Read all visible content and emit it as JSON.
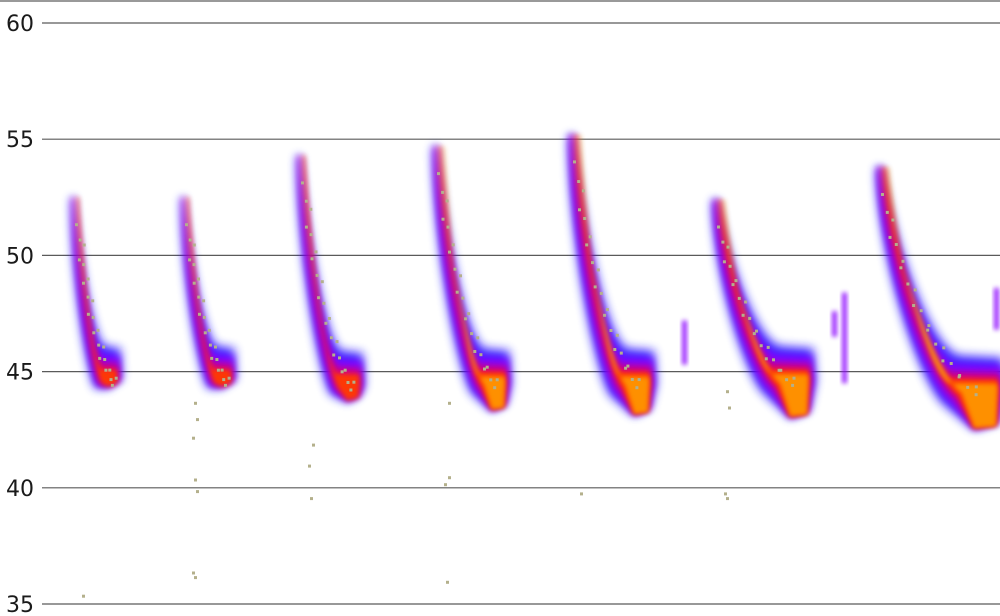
{
  "chart_data": {
    "type": "heatmap",
    "title": "",
    "xlabel": "",
    "ylabel": "",
    "ylim": [
      35,
      60
    ],
    "y_ticks": [
      {
        "value": 60,
        "label": "60"
      },
      {
        "value": 55,
        "label": "55"
      },
      {
        "value": 50,
        "label": "50"
      },
      {
        "value": 45,
        "label": "45"
      },
      {
        "value": 40,
        "label": "40"
      },
      {
        "value": 35,
        "label": "35"
      }
    ],
    "grid": true,
    "colormap": [
      "#1a00ff",
      "#8a00ff",
      "#e0006a",
      "#ff3a00",
      "#ff9a00",
      "#ffe040"
    ],
    "peak_marker_color": "#b4b08c",
    "sweeps": [
      {
        "start": 52.5,
        "end": 44.6,
        "tail_low": 44.4,
        "width": 1.0
      },
      {
        "start": 52.5,
        "end": 44.6,
        "tail_low": 44.4,
        "width": 1.0
      },
      {
        "start": 54.3,
        "end": 44.4,
        "tail_low": 43.8,
        "width": 1.2
      },
      {
        "start": 54.7,
        "end": 44.5,
        "tail_low": 43.4,
        "width": 1.4
      },
      {
        "start": 55.2,
        "end": 44.5,
        "tail_low": 43.2,
        "width": 1.7
      },
      {
        "start": 52.4,
        "end": 44.6,
        "tail_low": 43.1,
        "width": 1.8
      },
      {
        "start": 53.8,
        "end": 44.2,
        "tail_low": 42.6,
        "width": 2.0
      }
    ],
    "stray_points": [
      {
        "sweep": 0,
        "y": 35.4
      },
      {
        "sweep": 1,
        "y": 43.7
      },
      {
        "sweep": 1,
        "y": 43.0
      },
      {
        "sweep": 1,
        "y": 42.2
      },
      {
        "sweep": 1,
        "y": 40.4
      },
      {
        "sweep": 1,
        "y": 39.9
      },
      {
        "sweep": 1,
        "y": 36.4
      },
      {
        "sweep": 1,
        "y": 36.2
      },
      {
        "sweep": 2,
        "y": 41.9
      },
      {
        "sweep": 2,
        "y": 41.0
      },
      {
        "sweep": 2,
        "y": 39.6
      },
      {
        "sweep": 3,
        "y": 40.5
      },
      {
        "sweep": 3,
        "y": 40.2
      },
      {
        "sweep": 3,
        "y": 36.0
      },
      {
        "sweep": 3,
        "y": 43.7
      },
      {
        "sweep": 4,
        "y": 39.8
      },
      {
        "sweep": 5,
        "y": 44.2
      },
      {
        "sweep": 5,
        "y": 43.5
      },
      {
        "sweep": 5,
        "y": 39.8
      },
      {
        "sweep": 5,
        "y": 39.6
      }
    ]
  }
}
